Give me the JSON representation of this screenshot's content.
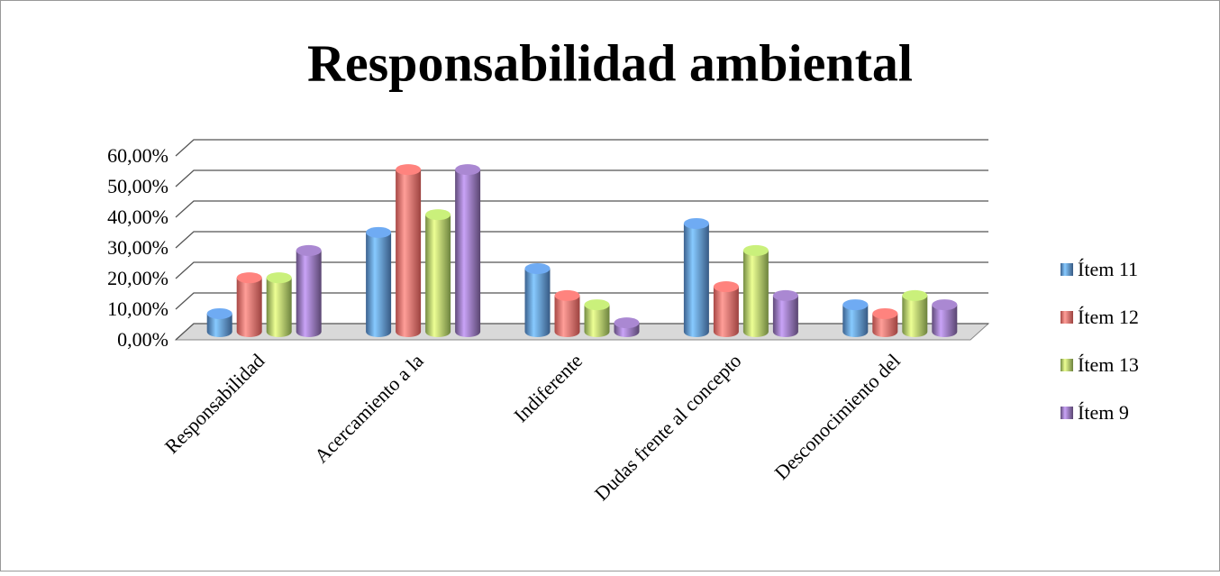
{
  "chart_data": {
    "type": "bar3d",
    "title": "Responsabilidad ambiental",
    "categories": [
      "Responsabilidad",
      "Acercamiento a la",
      "Indiferente",
      "Dudas frente al concepto",
      "Desconocimiento del"
    ],
    "series": [
      {
        "name": "Ítem 11",
        "color": "#4f81bd",
        "values": [
          5.9,
          32.4,
          20.6,
          35.3,
          8.8
        ]
      },
      {
        "name": "Ítem 12",
        "color": "#e0605c",
        "values": [
          17.6,
          52.9,
          11.8,
          14.7,
          5.9
        ]
      },
      {
        "name": "Ítem 13",
        "color": "#9bbb59",
        "values": [
          17.6,
          38.2,
          8.8,
          26.5,
          11.8
        ]
      },
      {
        "name": "Ítem 9",
        "color": "#8064a2",
        "values": [
          26.5,
          52.9,
          2.9,
          11.8,
          8.8
        ]
      }
    ],
    "ylim": [
      0,
      60
    ],
    "yticks": [
      {
        "value": 0,
        "label": "0,00%"
      },
      {
        "value": 10,
        "label": "10,00%"
      },
      {
        "value": 20,
        "label": "20,00%"
      },
      {
        "value": 30,
        "label": "30,00%"
      },
      {
        "value": 40,
        "label": "40,00%"
      },
      {
        "value": 50,
        "label": "50,00%"
      },
      {
        "value": 60,
        "label": "60,00%"
      }
    ],
    "grid": true,
    "legend": "right"
  }
}
